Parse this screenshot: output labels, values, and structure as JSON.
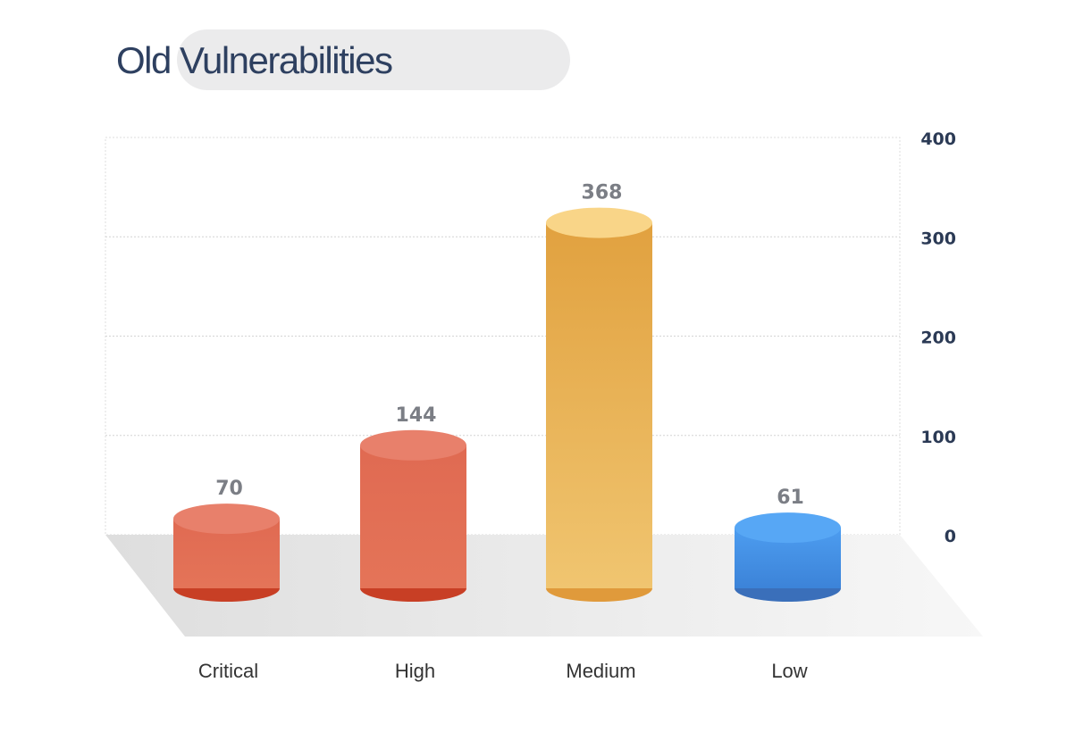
{
  "chart_data": {
    "type": "bar",
    "title": "Old Vulnerabilities",
    "categories": [
      "Critical",
      "High",
      "Medium",
      "Low"
    ],
    "values": [
      70,
      144,
      368,
      61
    ],
    "ylim": [
      0,
      400
    ],
    "yticks": [
      "0",
      "100",
      "200",
      "300",
      "400"
    ],
    "grid": true,
    "y_axis_side": "right",
    "bar_style": "3d-cylinder",
    "colors": {
      "Critical": {
        "body_top": "#e06a52",
        "body_bottom": "#e47458",
        "cap": "#e8806b",
        "base": "#c83f25"
      },
      "High": {
        "body_top": "#e06a52",
        "body_bottom": "#e47458",
        "cap": "#e8806b",
        "base": "#c83f25"
      },
      "Medium": {
        "body_top": "#e1a13f",
        "body_bottom": "#f0c570",
        "cap": "#f9d588",
        "base": "#e09a3b"
      },
      "Low": {
        "body_top": "#4d9df0",
        "body_bottom": "#3c83d8",
        "cap": "#57a7f5",
        "base": "#3a6fba"
      }
    },
    "title_color": "#2e4060",
    "tick_color": "#2b3a55",
    "value_label_color": "#7b7e85",
    "category_label_color": "#333333"
  }
}
